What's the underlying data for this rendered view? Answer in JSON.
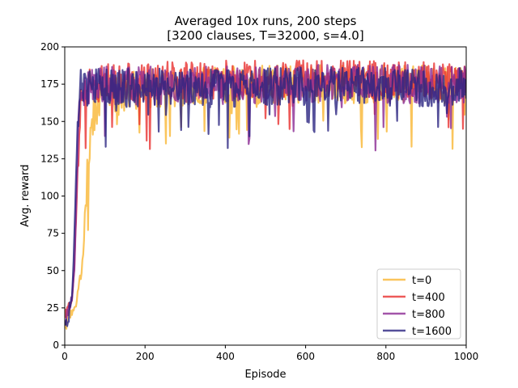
{
  "chart_data": {
    "type": "line",
    "title": [
      "Averaged 10x runs, 200 steps",
      "[3200 clauses, T=32000, s=4.0]"
    ],
    "xlabel": "Episode",
    "ylabel": "Avg. reward",
    "xlim": [
      0,
      1000
    ],
    "ylim": [
      0,
      200
    ],
    "xticks": [
      0,
      200,
      400,
      600,
      800,
      1000
    ],
    "yticks": [
      0,
      25,
      50,
      75,
      100,
      125,
      150,
      175,
      200
    ],
    "grid": false,
    "legend": {
      "placement": "lower-right"
    },
    "series": [
      {
        "name": "t=0",
        "color": "#f9b633",
        "x": [
          0,
          10,
          20,
          30,
          40,
          45,
          50,
          55,
          60,
          70,
          80,
          90,
          100,
          150,
          200,
          300,
          400,
          600,
          800,
          1000
        ],
        "y": [
          12,
          20,
          22,
          30,
          45,
          60,
          85,
          110,
          130,
          150,
          160,
          165,
          168,
          170,
          172,
          173,
          174,
          175,
          175,
          175
        ]
      },
      {
        "name": "t=400",
        "color": "#e8312f",
        "x": [
          0,
          10,
          20,
          25,
          30,
          35,
          40,
          50,
          60,
          100,
          200,
          400,
          600,
          800,
          1000
        ],
        "y": [
          18,
          25,
          35,
          60,
          100,
          140,
          160,
          170,
          175,
          176,
          177,
          178,
          178,
          178,
          178
        ]
      },
      {
        "name": "t=800",
        "color": "#8b2a93",
        "x": [
          0,
          10,
          20,
          25,
          30,
          35,
          40,
          50,
          60,
          100,
          200,
          400,
          600,
          800,
          1000
        ],
        "y": [
          15,
          22,
          35,
          60,
          110,
          150,
          168,
          172,
          174,
          174,
          174,
          174,
          175,
          175,
          175
        ]
      },
      {
        "name": "t=1600",
        "color": "#2b2481",
        "x": [
          0,
          10,
          20,
          25,
          30,
          35,
          40,
          50,
          60,
          100,
          200,
          400,
          600,
          800,
          1000
        ],
        "y": [
          12,
          20,
          40,
          80,
          130,
          160,
          172,
          174,
          173,
          172,
          173,
          172,
          174,
          173,
          173
        ]
      }
    ]
  }
}
